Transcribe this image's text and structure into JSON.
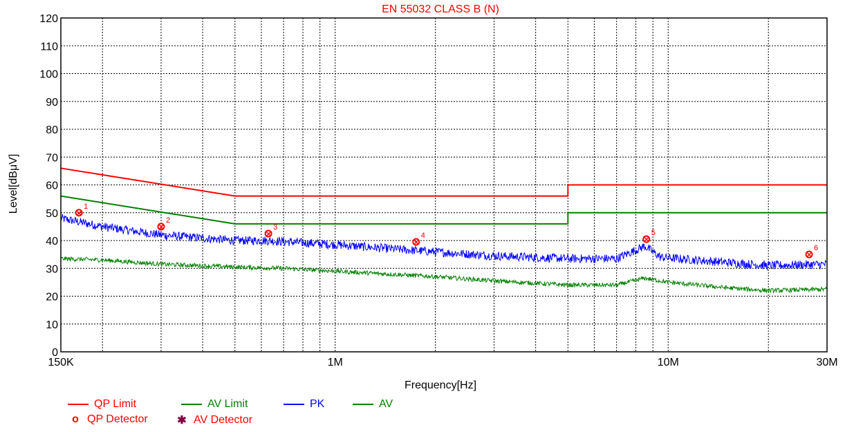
{
  "chart_data": {
    "type": "line",
    "title": "EN 55032 CLASS  B (N)",
    "xlabel": "Frequency[Hz]",
    "ylabel": "Level[dBμV]",
    "x_scale": "log",
    "xlim": [
      150000,
      30000000
    ],
    "ylim": [
      0,
      120
    ],
    "grid": true,
    "x_tick_labels": [
      {
        "value": 150000,
        "label": "150K"
      },
      {
        "value": 1000000,
        "label": "1M"
      },
      {
        "value": 10000000,
        "label": "10M"
      },
      {
        "value": 30000000,
        "label": "30M"
      }
    ],
    "y_ticks": [
      0,
      10,
      20,
      30,
      40,
      50,
      60,
      70,
      80,
      90,
      100,
      110,
      120
    ],
    "series": [
      {
        "name": "QP Limit",
        "color": "#ff0000",
        "x": [
          150000,
          500000,
          500000,
          5000000,
          5000000,
          30000000
        ],
        "y": [
          66,
          56,
          56,
          56,
          60,
          60
        ]
      },
      {
        "name": "AV Limit",
        "color": "#008000",
        "x": [
          150000,
          500000,
          500000,
          5000000,
          5000000,
          30000000
        ],
        "y": [
          56,
          46,
          46,
          46,
          50,
          50
        ]
      },
      {
        "name": "PK",
        "color": "#0000ff",
        "x": [
          150000,
          200000,
          300000,
          500000,
          620000,
          1000000,
          1700000,
          3000000,
          5000000,
          7000000,
          8500000,
          9500000,
          12000000,
          20000000,
          30000000
        ],
        "y": [
          48,
          45,
          42,
          40,
          40,
          38.5,
          36.5,
          34.5,
          33.5,
          33.5,
          38,
          34,
          33,
          31,
          31.5
        ]
      },
      {
        "name": "AV",
        "color": "#008000",
        "x": [
          150000,
          200000,
          300000,
          500000,
          700000,
          1000000,
          2000000,
          3000000,
          5000000,
          7000000,
          8500000,
          10000000,
          15000000,
          20000000,
          30000000
        ],
        "y": [
          33.5,
          33,
          31.5,
          30.5,
          30,
          29,
          27,
          25.5,
          24,
          24,
          26.5,
          25,
          23,
          22,
          22.5
        ]
      }
    ],
    "markers": [
      {
        "label": "1",
        "x": 170000,
        "y": 50
      },
      {
        "label": "2",
        "x": 300000,
        "y": 45
      },
      {
        "label": "3",
        "x": 630000,
        "y": 42.5
      },
      {
        "label": "4",
        "x": 1750000,
        "y": 39.5
      },
      {
        "label": "5",
        "x": 8600000,
        "y": 40.5
      },
      {
        "label": "6",
        "x": 26500000,
        "y": 35
      }
    ],
    "legend": {
      "placement": "bottom-left",
      "items": [
        "QP Limit",
        "AV Limit",
        "PK",
        "AV",
        "QP Detector",
        "AV Detector"
      ]
    }
  },
  "legend": {
    "qp_limit": "QP Limit",
    "av_limit": "AV Limit",
    "pk": "PK",
    "av": "AV",
    "qp_detector": "QP Detector",
    "av_detector": "AV Detector",
    "qp_detector_symbol": "o",
    "av_detector_symbol": "✱"
  }
}
